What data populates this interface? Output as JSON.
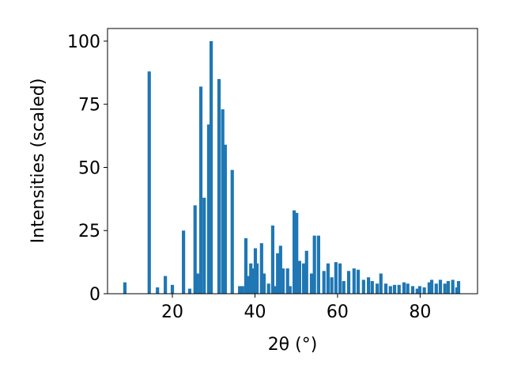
{
  "chart_data": {
    "type": "bar",
    "xlabel": "2θ (°)",
    "ylabel": "Intensities (scaled)",
    "color": "#1f77b4",
    "x": [
      8.5,
      14.4,
      16.4,
      18.3,
      20.0,
      22.7,
      24.2,
      25.5,
      26.1,
      26.9,
      27.7,
      28.8,
      29.4,
      31.3,
      32.2,
      32.8,
      34.5,
      36.3,
      37.0,
      37.8,
      38.4,
      39.0,
      39.5,
      40.1,
      40.5,
      41.6,
      42.2,
      43.3,
      44.3,
      44.9,
      45.5,
      46.2,
      46.8,
      47.9,
      48.5,
      49.5,
      50.1,
      50.8,
      51.8,
      52.5,
      53.7,
      54.4,
      55.4,
      56.7,
      57.7,
      58.6,
      59.6,
      60.6,
      61.5,
      62.7,
      64.0,
      65.0,
      66.3,
      67.5,
      68.4,
      69.6,
      70.5,
      71.7,
      72.8,
      73.8,
      74.9,
      76.1,
      77.0,
      78.2,
      79.3,
      79.9,
      81.0,
      82.2,
      82.8,
      83.9,
      84.9,
      86.0,
      86.8,
      87.9,
      88.9,
      89.3
    ],
    "values": [
      4.5,
      88,
      2.5,
      7,
      3.5,
      25,
      2,
      35,
      8,
      82,
      38,
      67,
      100,
      85,
      73,
      59,
      49,
      3,
      3,
      22,
      7,
      12,
      10,
      18,
      12,
      20,
      8,
      4,
      27,
      3,
      16,
      19,
      10,
      10,
      3,
      33,
      32,
      13,
      12,
      17,
      8,
      23,
      23,
      9,
      12,
      6.5,
      12.5,
      12,
      5,
      9,
      10,
      9.5,
      5.5,
      6.5,
      5,
      4,
      8,
      4,
      3,
      3.5,
      3.5,
      4.5,
      4,
      3,
      2,
      3,
      2.5,
      4.5,
      5.5,
      4,
      5.5,
      4,
      5,
      5.5,
      2.5,
      5
    ],
    "xlim": [
      4.3,
      93.9
    ],
    "xticks": [
      20,
      40,
      60,
      80
    ],
    "ylim": [
      0,
      105
    ],
    "yticks": [
      0,
      25,
      50,
      75,
      100
    ]
  }
}
